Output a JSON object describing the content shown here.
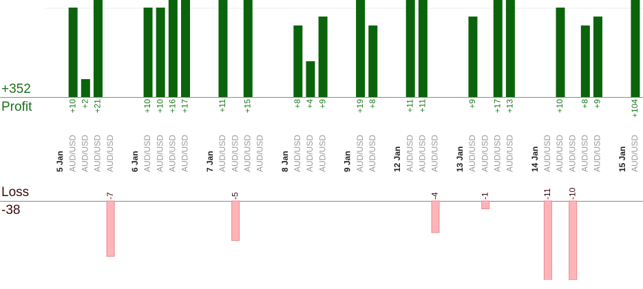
{
  "chart_data": {
    "type": "bar",
    "profit_total": "+352",
    "profit_title": "Profit",
    "loss_title": "Loss",
    "loss_total": "-38",
    "profit_color": "#0b640b",
    "loss_color": "#ffb4b8",
    "profit_label_color": "#1f7a1f",
    "loss_label_color": "#3a0a0a",
    "ylim": [
      0,
      10.85
    ],
    "loss_ylim": [
      -10,
      0
    ],
    "groups": [
      {
        "date": "5 Jan",
        "trades": [
          {
            "symbol": "AUD/USD",
            "value": 10,
            "label": "+10"
          },
          {
            "symbol": "AUD/USD",
            "value": 2,
            "label": "+2"
          },
          {
            "symbol": "AUD/USD",
            "value": 21,
            "label": "+21"
          },
          {
            "symbol": "AUD/USD",
            "value": -7
          }
        ]
      },
      {
        "date": "6 Jan",
        "trades": [
          {
            "symbol": "AUD/USD",
            "value": 10,
            "label": "+10"
          },
          {
            "symbol": "AUD/USD",
            "value": 10,
            "label": "+10"
          },
          {
            "symbol": "AUD/USD",
            "value": 16,
            "label": "+16"
          },
          {
            "symbol": "AUD/USD",
            "value": 17,
            "label": "+17"
          }
        ]
      },
      {
        "date": "7 Jan",
        "trades": [
          {
            "symbol": "AUD/USD",
            "value": 11,
            "label": "+11"
          },
          {
            "symbol": "AUD/USD",
            "value": -5
          },
          {
            "symbol": "AUD/USD",
            "value": 15,
            "label": "+15"
          },
          {
            "symbol": "AUD/USD",
            "value": null
          }
        ]
      },
      {
        "date": "8 Jan",
        "trades": [
          {
            "symbol": "AUD/USD",
            "value": 8,
            "label": "+8"
          },
          {
            "symbol": "AUD/USD",
            "value": 4,
            "label": "+4"
          },
          {
            "symbol": "AUD/USD",
            "value": 9,
            "label": "+9"
          }
        ]
      },
      {
        "date": "9 Jan",
        "trades": [
          {
            "symbol": "AUD/USD",
            "value": 19,
            "label": "+19"
          },
          {
            "symbol": "AUD/USD",
            "value": 8,
            "label": "+8"
          }
        ]
      },
      {
        "date": "12 Jan",
        "trades": [
          {
            "symbol": "AUD/USD",
            "value": 11,
            "label": "+11"
          },
          {
            "symbol": "AUD/USD",
            "value": 11,
            "label": "+11"
          },
          {
            "symbol": "AUD/USD",
            "value": -4
          }
        ]
      },
      {
        "date": "13 Jan",
        "trades": [
          {
            "symbol": "AUD/USD",
            "value": 9,
            "label": "+9"
          },
          {
            "symbol": "AUD/USD",
            "value": -1
          },
          {
            "symbol": "AUD/USD",
            "value": 17,
            "label": "+17"
          },
          {
            "symbol": "AUD/USD",
            "value": 13,
            "label": "+13"
          }
        ]
      },
      {
        "date": "14 Jan",
        "trades": [
          {
            "symbol": "AUD/USD",
            "value": -11
          },
          {
            "symbol": "AUD/USD",
            "value": 10,
            "label": "+10"
          },
          {
            "symbol": "AUD/USD",
            "value": -10
          },
          {
            "symbol": "AUD/USD",
            "value": 8,
            "label": "+8"
          },
          {
            "symbol": "AUD/USD",
            "value": 9,
            "label": "+9"
          }
        ]
      },
      {
        "date": "15 Jan",
        "trades": [
          {
            "symbol": "AUD/USD",
            "value": 104,
            "label": "+104"
          }
        ]
      }
    ]
  }
}
